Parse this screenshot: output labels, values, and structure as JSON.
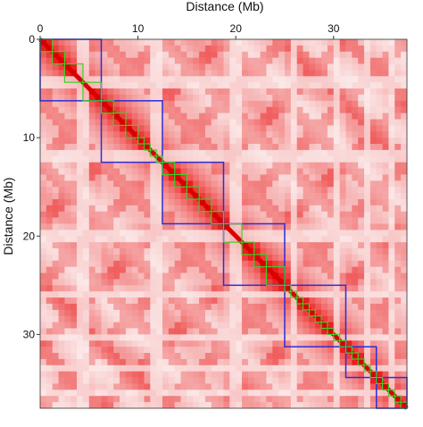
{
  "chart_data": {
    "type": "heatmap",
    "title": "",
    "xlabel": "Distance (Mb)",
    "ylabel": "Distance (Mb)",
    "xlim": [
      0,
      37.5
    ],
    "ylim": [
      0,
      37.5
    ],
    "x_axis_position": "top",
    "x_ticks": [
      "0",
      "10",
      "20",
      "30"
    ],
    "y_ticks": [
      "0",
      "10",
      "20",
      "30"
    ],
    "tick_values": [
      0,
      10,
      20,
      30
    ],
    "colormap": {
      "low": "#fbeaea",
      "high": "#e80000"
    },
    "outer_domain_color": "#2d2dd8",
    "inner_domain_color": "#3ad12b",
    "blue_domains": [
      [
        0,
        10
      ],
      [
        10,
        20
      ],
      [
        20,
        30
      ],
      [
        30,
        40
      ],
      [
        40,
        50
      ],
      [
        50,
        55
      ],
      [
        55,
        60
      ]
    ],
    "green_domains": [
      [
        0,
        2
      ],
      [
        2,
        4
      ],
      [
        4,
        7
      ],
      [
        7,
        10
      ],
      [
        10,
        12
      ],
      [
        12,
        14
      ],
      [
        14,
        16
      ],
      [
        16,
        17
      ],
      [
        17,
        18
      ],
      [
        18,
        19
      ],
      [
        19,
        20
      ],
      [
        20,
        22
      ],
      [
        22,
        24
      ],
      [
        24,
        26
      ],
      [
        26,
        28
      ],
      [
        28,
        30
      ],
      [
        30,
        33
      ],
      [
        33,
        35
      ],
      [
        35,
        37
      ],
      [
        37,
        40
      ],
      [
        40,
        41
      ],
      [
        41,
        42
      ],
      [
        42,
        43
      ],
      [
        43,
        44
      ],
      [
        44,
        45
      ],
      [
        45,
        46
      ],
      [
        46,
        47
      ],
      [
        47,
        48
      ],
      [
        48,
        49
      ],
      [
        49,
        50
      ],
      [
        50,
        51
      ],
      [
        51,
        52
      ],
      [
        52,
        53
      ],
      [
        53,
        54
      ],
      [
        54,
        55
      ],
      [
        55,
        56
      ],
      [
        56,
        57
      ],
      [
        57,
        58
      ],
      [
        58,
        59
      ],
      [
        59,
        60
      ]
    ],
    "domain_boundaries_mb": [
      0,
      1.2,
      2.5,
      4.2,
      6.1,
      6.5,
      7.4,
      8.3,
      9.5,
      10.3,
      11.0,
      11.6,
      12.6,
      13.0,
      14.4,
      15.5,
      16.3,
      17.0,
      17.6,
      19.5,
      20.8,
      22.8,
      25.6,
      26.5,
      27.3,
      28.2,
      29.0,
      29.7,
      30.4,
      32.0,
      33.0,
      34.0,
      35.0,
      35.6,
      36.3,
      37.1,
      37.5
    ]
  }
}
